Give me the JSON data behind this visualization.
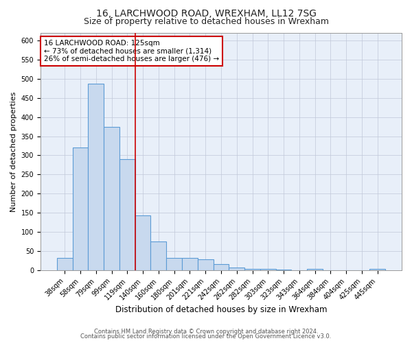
{
  "title1": "16, LARCHWOOD ROAD, WREXHAM, LL12 7SG",
  "title2": "Size of property relative to detached houses in Wrexham",
  "xlabel": "Distribution of detached houses by size in Wrexham",
  "ylabel": "Number of detached properties",
  "categories": [
    "38sqm",
    "58sqm",
    "79sqm",
    "99sqm",
    "119sqm",
    "140sqm",
    "160sqm",
    "180sqm",
    "201sqm",
    "221sqm",
    "242sqm",
    "262sqm",
    "282sqm",
    "303sqm",
    "323sqm",
    "343sqm",
    "364sqm",
    "384sqm",
    "404sqm",
    "425sqm",
    "445sqm"
  ],
  "values": [
    33,
    320,
    487,
    375,
    290,
    143,
    75,
    33,
    33,
    29,
    16,
    7,
    5,
    5,
    2,
    1,
    4,
    0,
    0,
    0,
    5
  ],
  "bar_color": "#c8d9ee",
  "bar_edge_color": "#5b9bd5",
  "bar_linewidth": 0.8,
  "vline_x_index": 4.5,
  "vline_color": "#cc0000",
  "annotation_line1": "16 LARCHWOOD ROAD: 125sqm",
  "annotation_line2": "← 73% of detached houses are smaller (1,314)",
  "annotation_line3": "26% of semi-detached houses are larger (476) →",
  "annotation_box_edgecolor": "#cc0000",
  "annotation_box_facecolor": "#ffffff",
  "ylim": [
    0,
    620
  ],
  "yticks": [
    0,
    50,
    100,
    150,
    200,
    250,
    300,
    350,
    400,
    450,
    500,
    550,
    600
  ],
  "plot_bg_color": "#e8eff9",
  "footer1": "Contains HM Land Registry data © Crown copyright and database right 2024.",
  "footer2": "Contains public sector information licensed under the Open Government Licence v3.0.",
  "title1_fontsize": 10,
  "title2_fontsize": 9,
  "xlabel_fontsize": 8.5,
  "ylabel_fontsize": 8,
  "tick_fontsize": 7,
  "annotation_fontsize": 7.5,
  "footer_fontsize": 6
}
